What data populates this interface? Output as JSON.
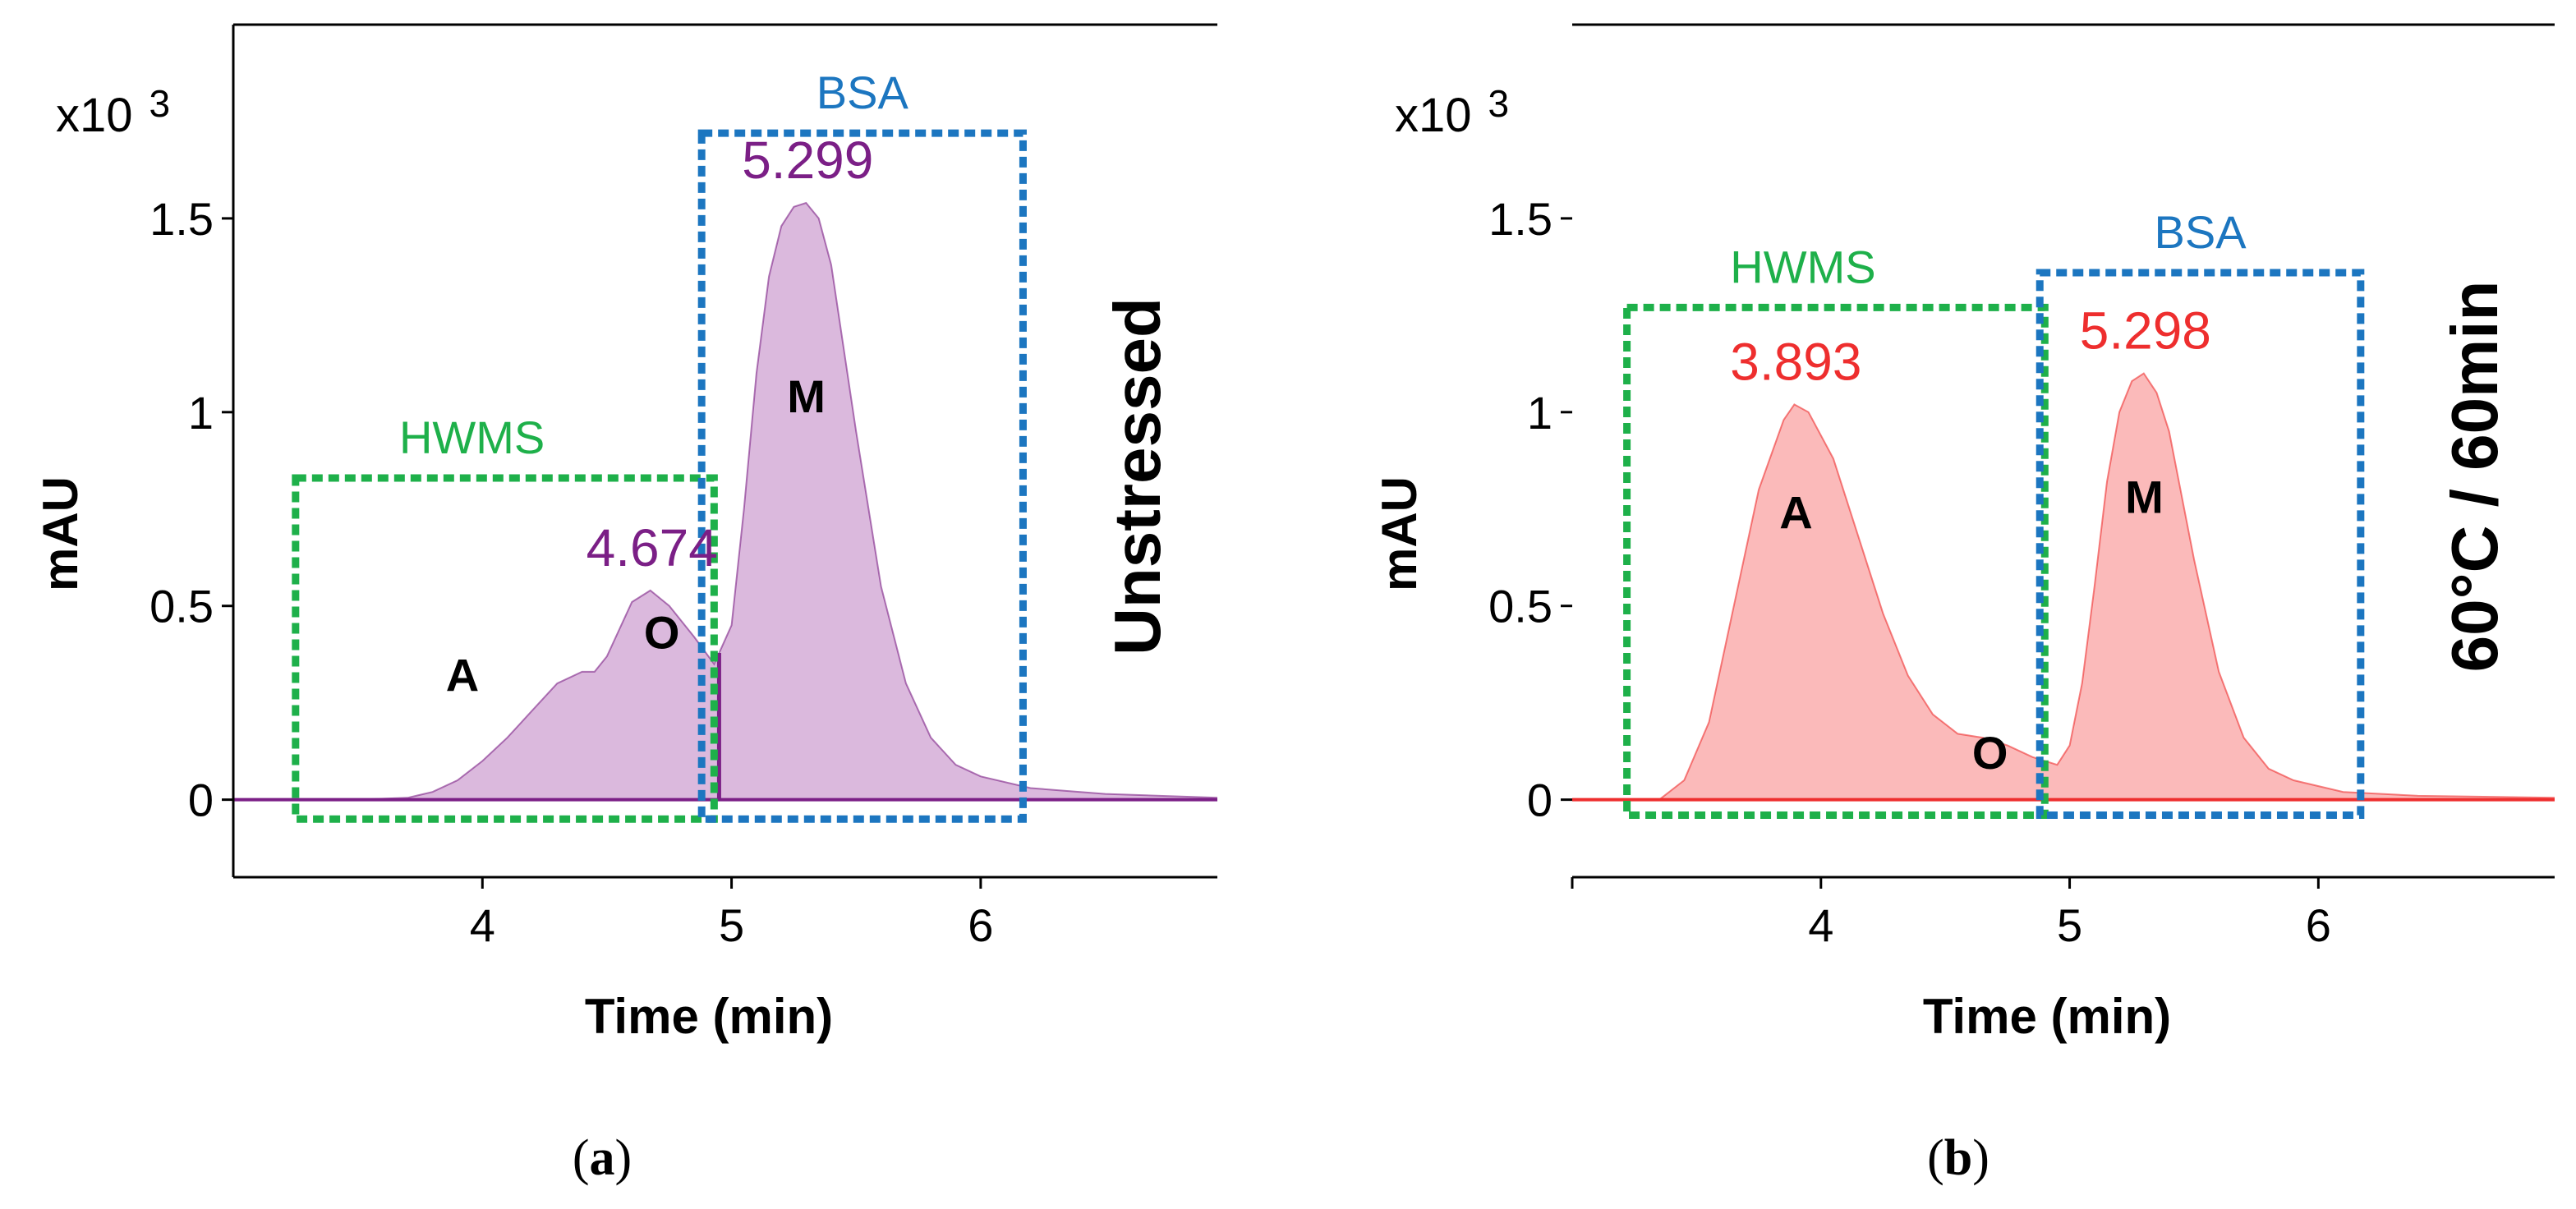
{
  "figure": {
    "panels": [
      {
        "label_open": "(",
        "label_letter": "a",
        "label_close": ")"
      },
      {
        "label_open": "(",
        "label_letter": "b",
        "label_close": ")"
      }
    ]
  },
  "chart_data": [
    {
      "type": "area",
      "panel": "a",
      "title": "",
      "side_label": "Unstressed",
      "xlabel": "Time (min)",
      "ylabel": "mAU",
      "y_multiplier": "x10",
      "y_multiplier_exp": "3",
      "xlim": [
        3.0,
        6.95
      ],
      "ylim": [
        -0.2,
        2.0
      ],
      "xticks": [
        "4",
        "5",
        "6"
      ],
      "yticks": [
        "0",
        "0.5",
        "1",
        "1.5"
      ],
      "xtick_values": [
        4,
        5,
        6
      ],
      "ytick_values": [
        0,
        0.5,
        1,
        1.5
      ],
      "series": [
        {
          "name": "Unstressed BSA",
          "color": "#7b1f86",
          "fill": "#dbb9dd",
          "x": [
            3.0,
            3.5,
            3.7,
            3.8,
            3.9,
            4.0,
            4.1,
            4.2,
            4.3,
            4.4,
            4.45,
            4.5,
            4.55,
            4.6,
            4.674,
            4.75,
            4.85,
            4.93,
            5.0,
            5.05,
            5.1,
            5.15,
            5.2,
            5.25,
            5.299,
            5.35,
            5.4,
            5.5,
            5.6,
            5.7,
            5.8,
            5.9,
            6.0,
            6.2,
            6.5,
            6.95
          ],
          "y": [
            0.0,
            0.0,
            0.005,
            0.02,
            0.05,
            0.1,
            0.16,
            0.23,
            0.3,
            0.33,
            0.33,
            0.37,
            0.44,
            0.51,
            0.54,
            0.5,
            0.42,
            0.35,
            0.45,
            0.75,
            1.1,
            1.35,
            1.48,
            1.53,
            1.54,
            1.5,
            1.38,
            0.95,
            0.55,
            0.3,
            0.16,
            0.09,
            0.06,
            0.03,
            0.015,
            0.005
          ]
        }
      ],
      "split_line_x": 4.95,
      "peaks": [
        {
          "rt": "4.674",
          "x": 4.674,
          "y": 0.54,
          "color": "#7b1f86"
        },
        {
          "rt": "5.299",
          "x": 5.299,
          "y": 1.54,
          "color": "#7b1f86"
        }
      ],
      "annotations": [
        {
          "text": "A",
          "x": 3.92,
          "y": 0.28
        },
        {
          "text": "O",
          "x": 4.72,
          "y": 0.39
        },
        {
          "text": "M",
          "x": 5.3,
          "y": 1.0
        }
      ],
      "boxes": [
        {
          "label": "HWMS",
          "color": "#1eb04a",
          "x0": 3.25,
          "x1": 4.93,
          "y0": -0.05,
          "y1": 0.83
        },
        {
          "label": "BSA",
          "color": "#1c76c0",
          "x0": 4.88,
          "x1": 6.17,
          "y0": -0.05,
          "y1": 1.72
        }
      ]
    },
    {
      "type": "area",
      "panel": "b",
      "title": "",
      "side_label": "60°C / 60min",
      "xlabel": "Time (min)",
      "ylabel": "mAU",
      "y_multiplier": "x10",
      "y_multiplier_exp": "3",
      "xlim": [
        3.0,
        6.95
      ],
      "ylim": [
        -0.2,
        2.0
      ],
      "xticks": [
        "4",
        "5",
        "6"
      ],
      "yticks": [
        "0",
        "0.5",
        "1",
        "1.5"
      ],
      "xtick_values": [
        4,
        5,
        6
      ],
      "ytick_values": [
        0,
        0.5,
        1,
        1.5
      ],
      "series": [
        {
          "name": "60°C / 60min BSA",
          "color": "#ee2e2e",
          "fill": "#fbbaba",
          "x": [
            3.0,
            3.35,
            3.45,
            3.55,
            3.65,
            3.75,
            3.85,
            3.893,
            3.95,
            4.05,
            4.15,
            4.25,
            4.35,
            4.45,
            4.55,
            4.65,
            4.75,
            4.85,
            4.95,
            5.0,
            5.05,
            5.1,
            5.15,
            5.2,
            5.25,
            5.298,
            5.35,
            5.4,
            5.5,
            5.6,
            5.7,
            5.8,
            5.9,
            6.1,
            6.4,
            6.95
          ],
          "y": [
            0.0,
            0.0,
            0.05,
            0.2,
            0.5,
            0.8,
            0.98,
            1.02,
            1.0,
            0.88,
            0.68,
            0.48,
            0.32,
            0.22,
            0.17,
            0.16,
            0.14,
            0.11,
            0.09,
            0.14,
            0.3,
            0.55,
            0.82,
            1.0,
            1.08,
            1.1,
            1.05,
            0.95,
            0.62,
            0.33,
            0.16,
            0.08,
            0.05,
            0.02,
            0.01,
            0.005
          ]
        }
      ],
      "peaks": [
        {
          "rt": "3.893",
          "x": 3.893,
          "y": 1.02,
          "color": "#ee2e2e"
        },
        {
          "rt": "5.298",
          "x": 5.298,
          "y": 1.1,
          "color": "#ee2e2e"
        }
      ],
      "annotations": [
        {
          "text": "A",
          "x": 3.9,
          "y": 0.7
        },
        {
          "text": "O",
          "x": 4.68,
          "y": 0.08
        },
        {
          "text": "M",
          "x": 5.3,
          "y": 0.74
        }
      ],
      "boxes": [
        {
          "label": "HWMS",
          "color": "#1eb04a",
          "x0": 3.22,
          "x1": 4.9,
          "y0": -0.04,
          "y1": 1.27
        },
        {
          "label": "BSA",
          "color": "#1c76c0",
          "x0": 4.88,
          "x1": 6.17,
          "y0": -0.04,
          "y1": 1.36
        }
      ]
    }
  ]
}
